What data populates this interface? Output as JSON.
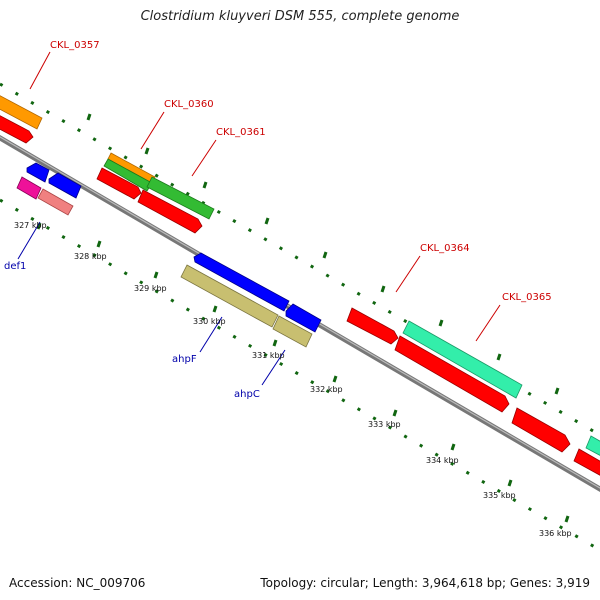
{
  "title": "Clostridium kluyveri DSM 555, complete genome",
  "footer": {
    "accession": "Accession: NC_009706",
    "summary": "Topology: circular; Length: 3,964,618 bp; Genes: 3,919"
  },
  "kbp_labels": [
    "327 kbp",
    "328 kbp",
    "329 kbp",
    "330 kbp",
    "331 kbp",
    "332 kbp",
    "333 kbp",
    "334 kbp",
    "335 kbp",
    "336 kbp"
  ],
  "gene_labels": {
    "CKL_0357": "CKL_0357",
    "CKL_0360": "CKL_0360",
    "CKL_0361": "CKL_0361",
    "CKL_0364": "CKL_0364",
    "CKL_0365": "CKL_0365",
    "def1": "def1",
    "ahpF": "ahpF",
    "ahpC": "ahpC"
  },
  "colors": {
    "red": "#ff0000",
    "orange": "#ff9900",
    "green": "#33bb33",
    "blue": "#0000ff",
    "teal": "#33eeaa",
    "olive": "#c8bf70",
    "magenta": "#ee1199",
    "pink": "#f08080",
    "backbone": "#888888",
    "tick": "#116611",
    "label_red": "#cc0000",
    "label_blue": "#0000aa"
  }
}
